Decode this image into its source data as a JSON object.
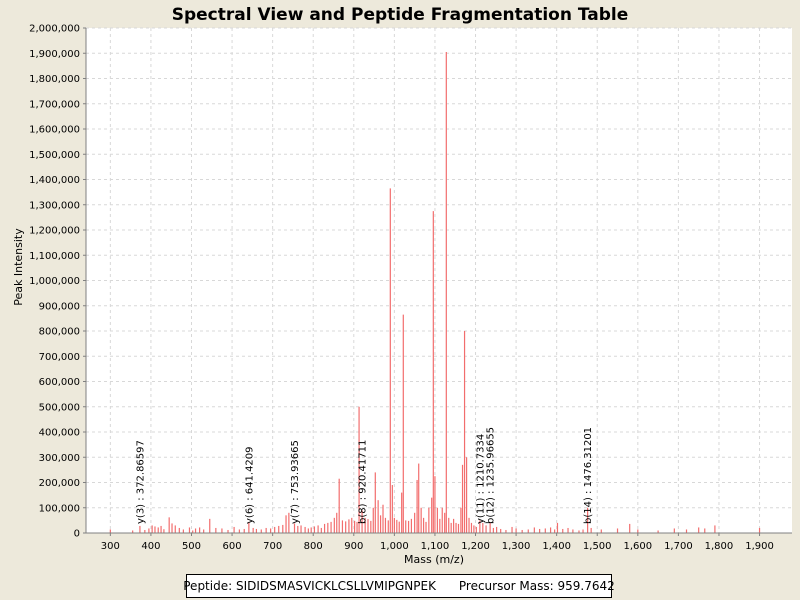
{
  "chart_data": {
    "type": "bar",
    "title": "Spectral View and Peptide Fragmentation Table",
    "xlabel": "Mass (m/z)",
    "ylabel": "Peak Intensity",
    "xlim": [
      240,
      1980
    ],
    "ylim": [
      0,
      2000000
    ],
    "xticks": [
      300,
      400,
      500,
      600,
      700,
      800,
      900,
      1000,
      1100,
      1200,
      1300,
      1400,
      1500,
      1600,
      1700,
      1800,
      1900
    ],
    "xtick_labels": [
      "300",
      "400",
      "500",
      "600",
      "700",
      "800",
      "900",
      "1,000",
      "1,100",
      "1,200",
      "1,300",
      "1,400",
      "1,500",
      "1,600",
      "1,700",
      "1,800",
      "1,900"
    ],
    "yticks": [
      0,
      100000,
      200000,
      300000,
      400000,
      500000,
      600000,
      700000,
      800000,
      900000,
      1000000,
      1100000,
      1200000,
      1300000,
      1400000,
      1500000,
      1600000,
      1700000,
      1800000,
      1900000,
      2000000
    ],
    "ytick_labels": [
      "0",
      "100,000",
      "200,000",
      "300,000",
      "400,000",
      "500,000",
      "600,000",
      "700,000",
      "800,000",
      "900,000",
      "1,000,000",
      "1,100,000",
      "1,200,000",
      "1,300,000",
      "1,400,000",
      "1,500,000",
      "1,600,000",
      "1,700,000",
      "1,800,000",
      "1,900,000",
      "2,000,000"
    ],
    "grid": true,
    "bar_color": "#f26d6d",
    "peaks": [
      {
        "x": 300,
        "y": 14000
      },
      {
        "x": 355,
        "y": 10000
      },
      {
        "x": 372.9,
        "y": 28000
      },
      {
        "x": 385,
        "y": 12000
      },
      {
        "x": 395,
        "y": 18000
      },
      {
        "x": 403,
        "y": 30000
      },
      {
        "x": 410,
        "y": 26000
      },
      {
        "x": 418,
        "y": 22000
      },
      {
        "x": 425,
        "y": 28000
      },
      {
        "x": 432,
        "y": 15000
      },
      {
        "x": 445,
        "y": 62000
      },
      {
        "x": 452,
        "y": 38000
      },
      {
        "x": 460,
        "y": 30000
      },
      {
        "x": 470,
        "y": 20000
      },
      {
        "x": 480,
        "y": 14000
      },
      {
        "x": 495,
        "y": 22000
      },
      {
        "x": 503,
        "y": 10000
      },
      {
        "x": 510,
        "y": 18000
      },
      {
        "x": 520,
        "y": 22000
      },
      {
        "x": 530,
        "y": 14000
      },
      {
        "x": 545,
        "y": 56000
      },
      {
        "x": 560,
        "y": 20000
      },
      {
        "x": 575,
        "y": 18000
      },
      {
        "x": 590,
        "y": 12000
      },
      {
        "x": 605,
        "y": 24000
      },
      {
        "x": 618,
        "y": 14000
      },
      {
        "x": 630,
        "y": 16000
      },
      {
        "x": 641.4,
        "y": 44000
      },
      {
        "x": 652,
        "y": 20000
      },
      {
        "x": 660,
        "y": 16000
      },
      {
        "x": 672,
        "y": 14000
      },
      {
        "x": 684,
        "y": 20000
      },
      {
        "x": 695,
        "y": 18000
      },
      {
        "x": 705,
        "y": 24000
      },
      {
        "x": 715,
        "y": 28000
      },
      {
        "x": 725,
        "y": 32000
      },
      {
        "x": 733,
        "y": 70000
      },
      {
        "x": 740,
        "y": 80000
      },
      {
        "x": 753.9,
        "y": 38000
      },
      {
        "x": 762,
        "y": 28000
      },
      {
        "x": 770,
        "y": 30000
      },
      {
        "x": 780,
        "y": 24000
      },
      {
        "x": 788,
        "y": 18000
      },
      {
        "x": 795,
        "y": 22000
      },
      {
        "x": 803,
        "y": 26000
      },
      {
        "x": 812,
        "y": 30000
      },
      {
        "x": 820,
        "y": 20000
      },
      {
        "x": 828,
        "y": 36000
      },
      {
        "x": 836,
        "y": 40000
      },
      {
        "x": 844,
        "y": 44000
      },
      {
        "x": 852,
        "y": 60000
      },
      {
        "x": 858,
        "y": 80000
      },
      {
        "x": 864,
        "y": 215000
      },
      {
        "x": 872,
        "y": 50000
      },
      {
        "x": 880,
        "y": 46000
      },
      {
        "x": 888,
        "y": 54000
      },
      {
        "x": 895,
        "y": 60000
      },
      {
        "x": 902,
        "y": 48000
      },
      {
        "x": 908,
        "y": 44000
      },
      {
        "x": 913,
        "y": 500000
      },
      {
        "x": 920.4,
        "y": 90000
      },
      {
        "x": 928,
        "y": 60000
      },
      {
        "x": 935,
        "y": 55000
      },
      {
        "x": 942,
        "y": 48000
      },
      {
        "x": 948,
        "y": 100000
      },
      {
        "x": 953,
        "y": 240000
      },
      {
        "x": 960,
        "y": 130000
      },
      {
        "x": 966,
        "y": 70000
      },
      {
        "x": 972,
        "y": 112000
      },
      {
        "x": 978,
        "y": 60000
      },
      {
        "x": 985,
        "y": 50000
      },
      {
        "x": 990,
        "y": 1365000
      },
      {
        "x": 995,
        "y": 190000
      },
      {
        "x": 1000,
        "y": 60000
      },
      {
        "x": 1006,
        "y": 52000
      },
      {
        "x": 1012,
        "y": 45000
      },
      {
        "x": 1018,
        "y": 160000
      },
      {
        "x": 1022,
        "y": 865000
      },
      {
        "x": 1028,
        "y": 50000
      },
      {
        "x": 1035,
        "y": 48000
      },
      {
        "x": 1042,
        "y": 56000
      },
      {
        "x": 1050,
        "y": 80000
      },
      {
        "x": 1056,
        "y": 210000
      },
      {
        "x": 1060,
        "y": 275000
      },
      {
        "x": 1066,
        "y": 100000
      },
      {
        "x": 1072,
        "y": 60000
      },
      {
        "x": 1078,
        "y": 44000
      },
      {
        "x": 1085,
        "y": 100000
      },
      {
        "x": 1092,
        "y": 140000
      },
      {
        "x": 1096,
        "y": 1275000
      },
      {
        "x": 1100,
        "y": 225000
      },
      {
        "x": 1106,
        "y": 100000
      },
      {
        "x": 1112,
        "y": 56000
      },
      {
        "x": 1118,
        "y": 100000
      },
      {
        "x": 1124,
        "y": 80000
      },
      {
        "x": 1128,
        "y": 1905000
      },
      {
        "x": 1134,
        "y": 60000
      },
      {
        "x": 1140,
        "y": 40000
      },
      {
        "x": 1146,
        "y": 56000
      },
      {
        "x": 1152,
        "y": 40000
      },
      {
        "x": 1158,
        "y": 36000
      },
      {
        "x": 1164,
        "y": 100000
      },
      {
        "x": 1168,
        "y": 270000
      },
      {
        "x": 1173,
        "y": 800000
      },
      {
        "x": 1178,
        "y": 300000
      },
      {
        "x": 1184,
        "y": 60000
      },
      {
        "x": 1190,
        "y": 40000
      },
      {
        "x": 1196,
        "y": 30000
      },
      {
        "x": 1202,
        "y": 24000
      },
      {
        "x": 1210.7,
        "y": 50000
      },
      {
        "x": 1218,
        "y": 40000
      },
      {
        "x": 1226,
        "y": 30000
      },
      {
        "x": 1236,
        "y": 40000
      },
      {
        "x": 1244,
        "y": 20000
      },
      {
        "x": 1252,
        "y": 24000
      },
      {
        "x": 1262,
        "y": 16000
      },
      {
        "x": 1275,
        "y": 12000
      },
      {
        "x": 1290,
        "y": 24000
      },
      {
        "x": 1300,
        "y": 18000
      },
      {
        "x": 1315,
        "y": 12000
      },
      {
        "x": 1330,
        "y": 14000
      },
      {
        "x": 1345,
        "y": 22000
      },
      {
        "x": 1358,
        "y": 16000
      },
      {
        "x": 1372,
        "y": 18000
      },
      {
        "x": 1385,
        "y": 22000
      },
      {
        "x": 1395,
        "y": 14000
      },
      {
        "x": 1402,
        "y": 40000
      },
      {
        "x": 1415,
        "y": 16000
      },
      {
        "x": 1428,
        "y": 20000
      },
      {
        "x": 1440,
        "y": 14000
      },
      {
        "x": 1455,
        "y": 10000
      },
      {
        "x": 1465,
        "y": 14000
      },
      {
        "x": 1476.3,
        "y": 100000
      },
      {
        "x": 1485,
        "y": 20000
      },
      {
        "x": 1510,
        "y": 14000
      },
      {
        "x": 1550,
        "y": 18000
      },
      {
        "x": 1580,
        "y": 36000
      },
      {
        "x": 1600,
        "y": 14000
      },
      {
        "x": 1650,
        "y": 10000
      },
      {
        "x": 1690,
        "y": 18000
      },
      {
        "x": 1720,
        "y": 14000
      },
      {
        "x": 1750,
        "y": 22000
      },
      {
        "x": 1765,
        "y": 18000
      },
      {
        "x": 1790,
        "y": 30000
      },
      {
        "x": 1900,
        "y": 20000
      }
    ],
    "annotations": [
      {
        "label": "y(3) : 372.86597",
        "x": 372.9
      },
      {
        "label": "y(6) : 641.4209",
        "x": 641.4
      },
      {
        "label": "y(7) : 753.93665",
        "x": 753.9
      },
      {
        "label": "b(8) : 920.41711",
        "x": 920.4
      },
      {
        "label": "y(11) : 1210.7334",
        "x": 1210.7
      },
      {
        "label": "b(12) : 1235.96655",
        "x": 1236.0
      },
      {
        "label": "b(14) : 1476.31201",
        "x": 1476.3
      }
    ]
  },
  "info": {
    "peptide_label": "Peptide: ",
    "peptide": "SIDIDSMASVICKLCSLLVMIPGNPEK",
    "precursor_label": "Precursor Mass: ",
    "precursor_mass": "959.7642"
  }
}
